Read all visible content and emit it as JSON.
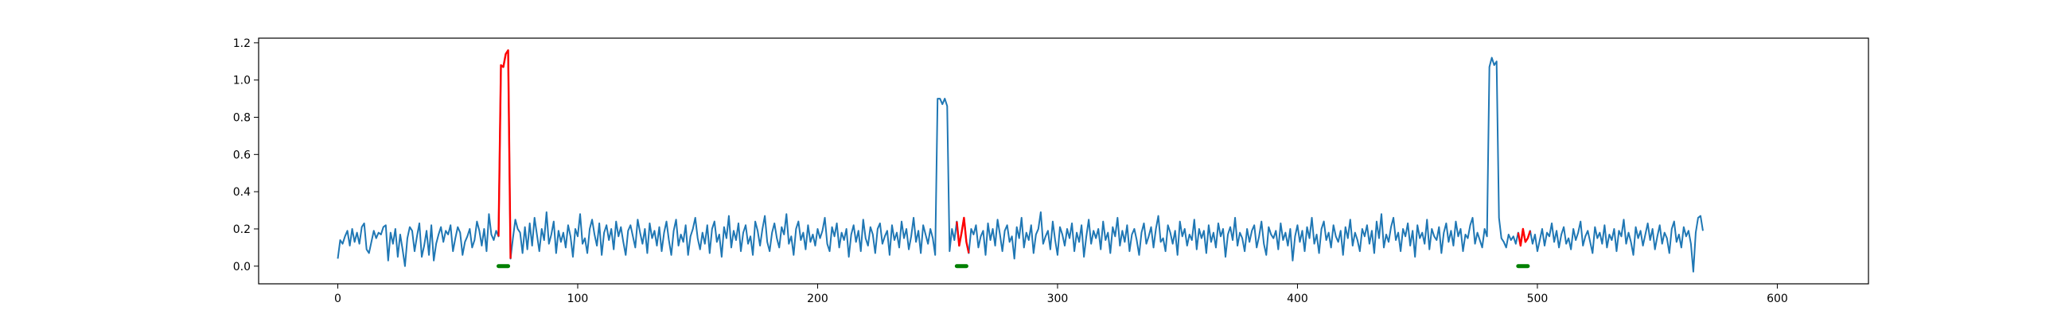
{
  "chart_data": {
    "type": "line",
    "title": "",
    "xlabel": "",
    "ylabel": "",
    "xlim": [
      -33,
      638
    ],
    "ylim": [
      -0.095,
      1.225
    ],
    "xticks": [
      0,
      100,
      200,
      300,
      400,
      500,
      600
    ],
    "yticks": [
      0.0,
      0.2,
      0.4,
      0.6,
      0.8,
      1.0,
      1.2
    ],
    "xtick_labels": [
      "0",
      "100",
      "200",
      "300",
      "400",
      "500",
      "600"
    ],
    "ytick_labels": [
      "0.0",
      "0.2",
      "0.4",
      "0.6",
      "0.8",
      "1.0",
      "1.2"
    ],
    "grid": false,
    "legend": "none",
    "signal": {
      "color": "#1f77b4",
      "values": [
        0.04,
        0.14,
        0.12,
        0.16,
        0.19,
        0.11,
        0.2,
        0.13,
        0.18,
        0.12,
        0.21,
        0.23,
        0.09,
        0.07,
        0.13,
        0.19,
        0.15,
        0.18,
        0.17,
        0.21,
        0.22,
        0.03,
        0.18,
        0.12,
        0.2,
        0.05,
        0.17,
        0.09,
        0.0,
        0.15,
        0.21,
        0.19,
        0.08,
        0.16,
        0.23,
        0.05,
        0.11,
        0.19,
        0.06,
        0.22,
        0.03,
        0.12,
        0.17,
        0.21,
        0.13,
        0.19,
        0.17,
        0.22,
        0.08,
        0.15,
        0.21,
        0.18,
        0.06,
        0.13,
        0.16,
        0.2,
        0.1,
        0.14,
        0.24,
        0.19,
        0.11,
        0.2,
        0.08,
        0.28,
        0.17,
        0.14,
        0.19,
        0.16,
        1.08,
        1.07,
        1.14,
        1.16,
        0.04,
        0.15,
        0.25,
        0.2,
        0.18,
        0.07,
        0.21,
        0.09,
        0.23,
        0.11,
        0.26,
        0.17,
        0.08,
        0.2,
        0.14,
        0.29,
        0.12,
        0.17,
        0.24,
        0.07,
        0.19,
        0.13,
        0.18,
        0.1,
        0.22,
        0.16,
        0.05,
        0.2,
        0.16,
        0.28,
        0.12,
        0.15,
        0.07,
        0.2,
        0.25,
        0.17,
        0.11,
        0.23,
        0.06,
        0.18,
        0.22,
        0.14,
        0.2,
        0.09,
        0.24,
        0.16,
        0.21,
        0.13,
        0.06,
        0.19,
        0.22,
        0.16,
        0.1,
        0.25,
        0.18,
        0.12,
        0.2,
        0.07,
        0.23,
        0.15,
        0.19,
        0.11,
        0.21,
        0.08,
        0.18,
        0.24,
        0.14,
        0.06,
        0.19,
        0.25,
        0.11,
        0.17,
        0.13,
        0.22,
        0.06,
        0.16,
        0.2,
        0.26,
        0.15,
        0.09,
        0.18,
        0.12,
        0.22,
        0.07,
        0.2,
        0.24,
        0.13,
        0.17,
        0.05,
        0.21,
        0.15,
        0.27,
        0.1,
        0.19,
        0.14,
        0.23,
        0.08,
        0.18,
        0.22,
        0.12,
        0.16,
        0.06,
        0.24,
        0.19,
        0.11,
        0.2,
        0.27,
        0.13,
        0.08,
        0.18,
        0.23,
        0.15,
        0.1,
        0.21,
        0.17,
        0.28,
        0.12,
        0.16,
        0.06,
        0.2,
        0.24,
        0.14,
        0.18,
        0.09,
        0.22,
        0.13,
        0.17,
        0.11,
        0.2,
        0.15,
        0.19,
        0.26,
        0.12,
        0.08,
        0.21,
        0.16,
        0.23,
        0.1,
        0.18,
        0.14,
        0.2,
        0.05,
        0.17,
        0.22,
        0.13,
        0.19,
        0.08,
        0.25,
        0.15,
        0.11,
        0.21,
        0.17,
        0.07,
        0.2,
        0.23,
        0.12,
        0.16,
        0.19,
        0.06,
        0.22,
        0.14,
        0.18,
        0.1,
        0.24,
        0.15,
        0.2,
        0.09,
        0.16,
        0.26,
        0.13,
        0.19,
        0.07,
        0.22,
        0.17,
        0.12,
        0.2,
        0.15,
        0.06,
        0.9,
        0.9,
        0.87,
        0.9,
        0.86,
        0.08,
        0.2,
        0.14,
        0.24,
        0.11,
        0.18,
        0.26,
        0.13,
        0.07,
        0.2,
        0.17,
        0.22,
        0.1,
        0.16,
        0.19,
        0.06,
        0.23,
        0.14,
        0.2,
        0.11,
        0.25,
        0.17,
        0.08,
        0.19,
        0.22,
        0.13,
        0.16,
        0.04,
        0.21,
        0.15,
        0.26,
        0.1,
        0.18,
        0.14,
        0.22,
        0.07,
        0.17,
        0.2,
        0.29,
        0.12,
        0.16,
        0.19,
        0.09,
        0.24,
        0.14,
        0.06,
        0.21,
        0.17,
        0.11,
        0.2,
        0.15,
        0.23,
        0.08,
        0.18,
        0.13,
        0.22,
        0.05,
        0.16,
        0.25,
        0.12,
        0.19,
        0.15,
        0.2,
        0.09,
        0.24,
        0.14,
        0.18,
        0.07,
        0.21,
        0.16,
        0.26,
        0.11,
        0.19,
        0.13,
        0.22,
        0.08,
        0.17,
        0.2,
        0.14,
        0.06,
        0.18,
        0.23,
        0.12,
        0.16,
        0.21,
        0.1,
        0.2,
        0.27,
        0.13,
        0.15,
        0.08,
        0.22,
        0.18,
        0.12,
        0.19,
        0.06,
        0.24,
        0.16,
        0.2,
        0.11,
        0.17,
        0.14,
        0.25,
        0.09,
        0.2,
        0.15,
        0.19,
        0.07,
        0.22,
        0.13,
        0.18,
        0.1,
        0.23,
        0.16,
        0.2,
        0.05,
        0.17,
        0.21,
        0.14,
        0.26,
        0.11,
        0.18,
        0.15,
        0.08,
        0.2,
        0.13,
        0.19,
        0.22,
        0.1,
        0.16,
        0.24,
        0.12,
        0.06,
        0.21,
        0.17,
        0.15,
        0.19,
        0.09,
        0.23,
        0.14,
        0.18,
        0.11,
        0.2,
        0.03,
        0.16,
        0.22,
        0.13,
        0.19,
        0.08,
        0.21,
        0.15,
        0.26,
        0.12,
        0.17,
        0.07,
        0.2,
        0.24,
        0.14,
        0.18,
        0.1,
        0.22,
        0.16,
        0.13,
        0.19,
        0.06,
        0.21,
        0.15,
        0.25,
        0.11,
        0.18,
        0.14,
        0.08,
        0.2,
        0.16,
        0.22,
        0.12,
        0.19,
        0.07,
        0.24,
        0.15,
        0.28,
        0.1,
        0.17,
        0.13,
        0.21,
        0.26,
        0.14,
        0.18,
        0.08,
        0.2,
        0.16,
        0.23,
        0.11,
        0.19,
        0.05,
        0.22,
        0.15,
        0.18,
        0.12,
        0.25,
        0.09,
        0.2,
        0.16,
        0.14,
        0.21,
        0.07,
        0.18,
        0.23,
        0.13,
        0.19,
        0.11,
        0.24,
        0.16,
        0.2,
        0.08,
        0.17,
        0.15,
        0.22,
        0.26,
        0.12,
        0.18,
        0.14,
        0.1,
        0.2,
        0.16,
        1.07,
        1.12,
        1.08,
        1.1,
        0.26,
        0.15,
        0.13,
        0.1,
        0.17,
        0.14,
        0.16,
        0.12,
        0.18,
        0.11,
        0.2,
        0.13,
        0.15,
        0.19,
        0.12,
        0.17,
        0.08,
        0.14,
        0.2,
        0.11,
        0.18,
        0.16,
        0.23,
        0.13,
        0.19,
        0.1,
        0.17,
        0.21,
        0.12,
        0.15,
        0.09,
        0.2,
        0.14,
        0.18,
        0.24,
        0.11,
        0.16,
        0.19,
        0.13,
        0.07,
        0.21,
        0.15,
        0.18,
        0.12,
        0.22,
        0.1,
        0.17,
        0.14,
        0.2,
        0.08,
        0.19,
        0.16,
        0.25,
        0.12,
        0.18,
        0.13,
        0.06,
        0.21,
        0.15,
        0.19,
        0.11,
        0.17,
        0.23,
        0.14,
        0.2,
        0.09,
        0.16,
        0.22,
        0.12,
        0.18,
        0.15,
        0.07,
        0.2,
        0.24,
        0.13,
        0.17,
        0.1,
        0.21,
        0.16,
        0.19,
        0.12,
        -0.03,
        0.18,
        0.26,
        0.27,
        0.19
      ]
    },
    "anomaly_segments": {
      "color": "#ff0000",
      "ranges": [
        [
          67,
          72
        ],
        [
          258,
          263
        ],
        [
          492,
          497
        ]
      ]
    },
    "marker_bars": {
      "color": "#008000",
      "y": 0.0,
      "ranges": [
        [
          67,
          71
        ],
        [
          258,
          262
        ],
        [
          492,
          496
        ]
      ]
    }
  }
}
